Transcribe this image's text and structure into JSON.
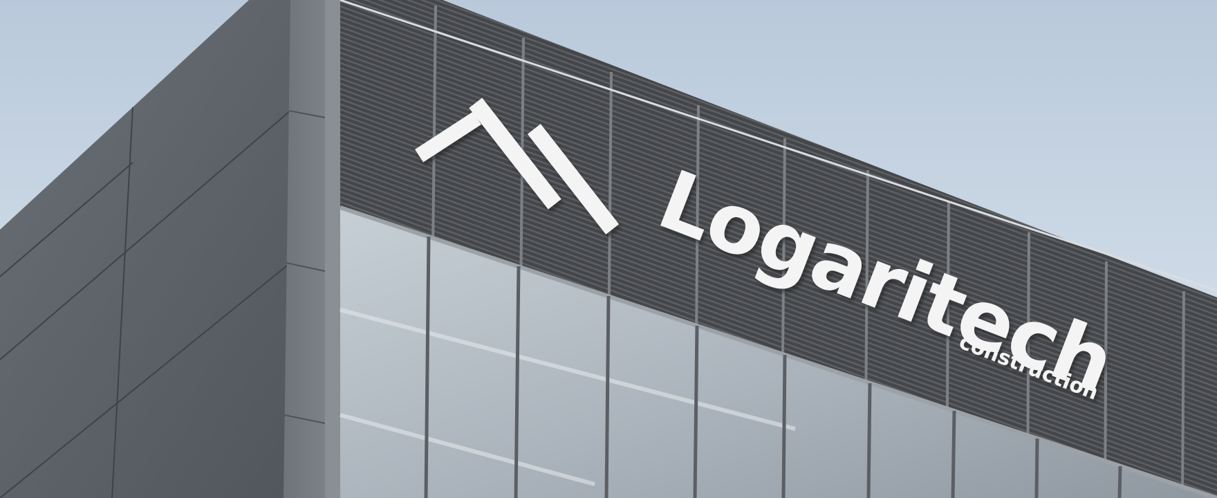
{
  "photo": {
    "sign": {
      "brand_name": "Logaritech",
      "tagline": "construction"
    },
    "colors": {
      "sky_top": "#b9c9db",
      "sky_bottom": "#dde6ee",
      "stone_panel": "#5b6066",
      "louver_panel": "#4b4d51",
      "glass": "#b5bec6",
      "sign_white": "#f4f4f4"
    }
  }
}
